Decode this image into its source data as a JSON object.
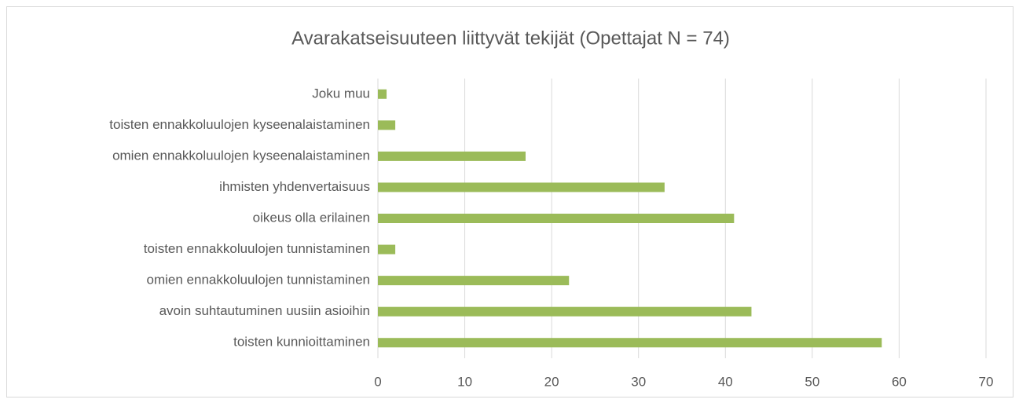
{
  "chart_data": {
    "type": "hbar",
    "title": "Avarakatseisuuteen liittyvät tekijät (Opettajat N = 74)",
    "categories": [
      "Joku muu",
      "toisten ennakkoluulojen kyseenalaistaminen",
      "omien ennakkoluulojen kyseenalaistaminen",
      "ihmisten yhdenvertaisuus",
      "oikeus olla erilainen",
      "toisten ennakkoluulojen tunnistaminen",
      "omien ennakkoluulojen tunnistaminen",
      "avoin suhtautuminen uusiin asioihin",
      "toisten kunnioittaminen"
    ],
    "values": [
      1,
      2,
      17,
      33,
      41,
      2,
      22,
      43,
      58
    ],
    "color": "#9bbb59",
    "xlim": [
      0,
      70
    ],
    "xticks": [
      0,
      10,
      20,
      30,
      40,
      50,
      60,
      70
    ],
    "grid": true
  }
}
